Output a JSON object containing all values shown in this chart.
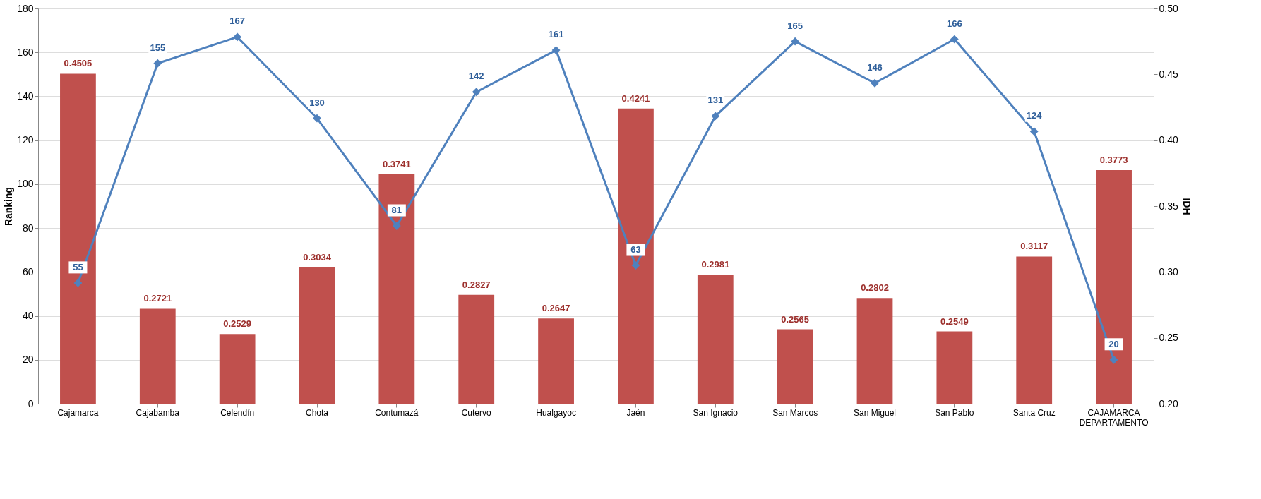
{
  "chart_data": {
    "type": "bar",
    "categories": [
      "Cajamarca",
      "Cajabamba",
      "Celendín",
      "Chota",
      "Contumazá",
      "Cutervo",
      "Hualgayoc",
      "Jaén",
      "San Ignacio",
      "San Marcos",
      "San Miguel",
      "San Pablo",
      "Santa Cruz",
      "CAJAMARCA DEPARTAMENTO"
    ],
    "series": [
      {
        "axis": "y2",
        "color": "#c0504d",
        "values": [
          0.4505,
          0.2721,
          0.2529,
          0.3034,
          0.3741,
          0.2827,
          0.2647,
          0.4241,
          0.2981,
          0.2565,
          0.2802,
          0.2549,
          0.3117,
          0.3773
        ]
      },
      {
        "type": "line",
        "color": "#4f81bd",
        "marker": "diamond",
        "values": [
          55,
          155,
          167,
          130,
          81,
          142,
          161,
          63,
          131,
          165,
          146,
          166,
          124,
          20
        ]
      }
    ],
    "ylabel": "Ranking",
    "y2label": "IDH",
    "ylim": [
      0,
      180
    ],
    "yticks": [
      0,
      20,
      40,
      60,
      80,
      100,
      120,
      140,
      160,
      180
    ],
    "y2lim": [
      0.2,
      0.5
    ],
    "y2ticks": [
      {
        "value": 0.2,
        "label": "0.20"
      },
      {
        "value": 0.25,
        "label": "0.25"
      },
      {
        "value": 0.3,
        "label": "0.30"
      },
      {
        "value": 0.35,
        "label": "0.35"
      },
      {
        "value": 0.4,
        "label": "0.40"
      },
      {
        "value": 0.45,
        "label": "0.45"
      },
      {
        "value": 0.5,
        "label": "0.50"
      }
    ],
    "grid": "y",
    "data_labels": true
  }
}
